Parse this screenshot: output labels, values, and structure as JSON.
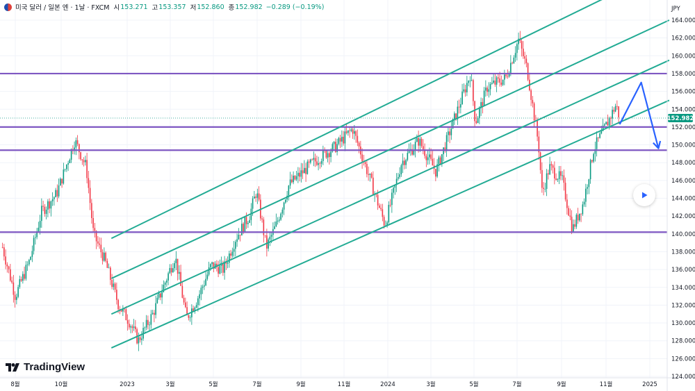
{
  "header": {
    "symbol": "미국 달러 / 일본 엔 · 1날 · FXCM",
    "open_label": "시",
    "open": "153.271",
    "high_label": "고",
    "high": "153.357",
    "low_label": "저",
    "low": "152.860",
    "close_label": "종",
    "close": "152.982",
    "change": "−0.289 (−0.19%)"
  },
  "currency": "JPY",
  "brand": "TradingView",
  "icons": {
    "play": "play-icon",
    "flag": "flag-icon",
    "logo": "tradingview-logo-icon"
  },
  "colors": {
    "up": "#089981",
    "down": "#f23645",
    "level": "#7e57c2",
    "channel": "#22ab94",
    "projection": "#2962ff",
    "price_badge": "#089981"
  },
  "chart_data": {
    "type": "candlestick",
    "yaxis": {
      "min": 124,
      "max": 164,
      "ticks": [
        124,
        126,
        128,
        130,
        132,
        134,
        136,
        138,
        140,
        142,
        144,
        146,
        148,
        150,
        152,
        154,
        156,
        158,
        160,
        162,
        164
      ]
    },
    "xaxis_labels": [
      {
        "label": "8월",
        "date": "2022-08-01"
      },
      {
        "label": "10월",
        "date": "2022-10-01"
      },
      {
        "label": "2023",
        "date": "2023-01-01"
      },
      {
        "label": "3월",
        "date": "2023-03-01"
      },
      {
        "label": "5월",
        "date": "2023-05-01"
      },
      {
        "label": "7월",
        "date": "2023-07-01"
      },
      {
        "label": "9월",
        "date": "2023-09-01"
      },
      {
        "label": "11월",
        "date": "2023-11-01"
      },
      {
        "label": "2024",
        "date": "2024-01-01"
      },
      {
        "label": "3월",
        "date": "2024-03-01"
      },
      {
        "label": "5월",
        "date": "2024-05-01"
      },
      {
        "label": "7월",
        "date": "2024-07-01"
      },
      {
        "label": "9월",
        "date": "2024-09-01"
      },
      {
        "label": "11월",
        "date": "2024-11-01"
      },
      {
        "label": "2025",
        "date": "2025-01-01"
      }
    ],
    "close_path": [
      {
        "date": "2022-07-15",
        "price": 138.5
      },
      {
        "date": "2022-08-01",
        "price": 133.0
      },
      {
        "date": "2022-08-20",
        "price": 137.0
      },
      {
        "date": "2022-09-05",
        "price": 142.5
      },
      {
        "date": "2022-09-25",
        "price": 144.5
      },
      {
        "date": "2022-10-20",
        "price": 150.5
      },
      {
        "date": "2022-11-05",
        "price": 147.5
      },
      {
        "date": "2022-11-15",
        "price": 140.0
      },
      {
        "date": "2022-12-01",
        "price": 137.0
      },
      {
        "date": "2022-12-20",
        "price": 132.0
      },
      {
        "date": "2023-01-05",
        "price": 130.0
      },
      {
        "date": "2023-01-16",
        "price": 128.0
      },
      {
        "date": "2023-02-05",
        "price": 131.0
      },
      {
        "date": "2023-03-08",
        "price": 137.5
      },
      {
        "date": "2023-03-24",
        "price": 130.5
      },
      {
        "date": "2023-04-10",
        "price": 133.0
      },
      {
        "date": "2023-04-28",
        "price": 136.5
      },
      {
        "date": "2023-05-15",
        "price": 136.0
      },
      {
        "date": "2023-06-01",
        "price": 139.5
      },
      {
        "date": "2023-06-20",
        "price": 142.0
      },
      {
        "date": "2023-06-30",
        "price": 144.8
      },
      {
        "date": "2023-07-14",
        "price": 138.5
      },
      {
        "date": "2023-07-28",
        "price": 141.0
      },
      {
        "date": "2023-08-15",
        "price": 145.5
      },
      {
        "date": "2023-09-15",
        "price": 147.8
      },
      {
        "date": "2023-10-05",
        "price": 149.0
      },
      {
        "date": "2023-10-20",
        "price": 149.8
      },
      {
        "date": "2023-11-13",
        "price": 151.8
      },
      {
        "date": "2023-11-25",
        "price": 149.0
      },
      {
        "date": "2023-12-10",
        "price": 145.5
      },
      {
        "date": "2023-12-28",
        "price": 141.0
      },
      {
        "date": "2024-01-20",
        "price": 148.0
      },
      {
        "date": "2024-02-13",
        "price": 150.5
      },
      {
        "date": "2024-03-08",
        "price": 147.0
      },
      {
        "date": "2024-03-28",
        "price": 151.5
      },
      {
        "date": "2024-04-26",
        "price": 158.0
      },
      {
        "date": "2024-05-03",
        "price": 152.5
      },
      {
        "date": "2024-05-20",
        "price": 156.5
      },
      {
        "date": "2024-06-15",
        "price": 157.5
      },
      {
        "date": "2024-07-03",
        "price": 161.8
      },
      {
        "date": "2024-07-15",
        "price": 158.5
      },
      {
        "date": "2024-07-31",
        "price": 150.0
      },
      {
        "date": "2024-08-05",
        "price": 144.5
      },
      {
        "date": "2024-08-15",
        "price": 147.5
      },
      {
        "date": "2024-09-02",
        "price": 146.0
      },
      {
        "date": "2024-09-16",
        "price": 140.5
      },
      {
        "date": "2024-10-01",
        "price": 143.5
      },
      {
        "date": "2024-10-15",
        "price": 149.5
      },
      {
        "date": "2024-10-31",
        "price": 152.0
      },
      {
        "date": "2024-11-15",
        "price": 154.5
      },
      {
        "date": "2024-11-20",
        "price": 152.98
      }
    ],
    "horizontal_levels": [
      158.0,
      152.0,
      149.4,
      140.2
    ],
    "channel_lines": [
      {
        "from": {
          "date": "2022-12-10",
          "price": 139.5
        },
        "to": {
          "date": "2025-01-28",
          "price": 170.0
        }
      },
      {
        "from": {
          "date": "2022-12-10",
          "price": 135.0
        },
        "to": {
          "date": "2025-01-28",
          "price": 164.0
        }
      },
      {
        "from": {
          "date": "2022-12-10",
          "price": 131.0
        },
        "to": {
          "date": "2025-01-28",
          "price": 159.5
        }
      },
      {
        "from": {
          "date": "2022-12-10",
          "price": 127.2
        },
        "to": {
          "date": "2025-01-28",
          "price": 155.0
        }
      }
    ],
    "projection_arrow": [
      {
        "date": "2024-11-20",
        "price": 152.3
      },
      {
        "date": "2024-12-20",
        "price": 157.0
      },
      {
        "date": "2025-01-13",
        "price": 149.6
      }
    ],
    "last_price": 152.982
  }
}
